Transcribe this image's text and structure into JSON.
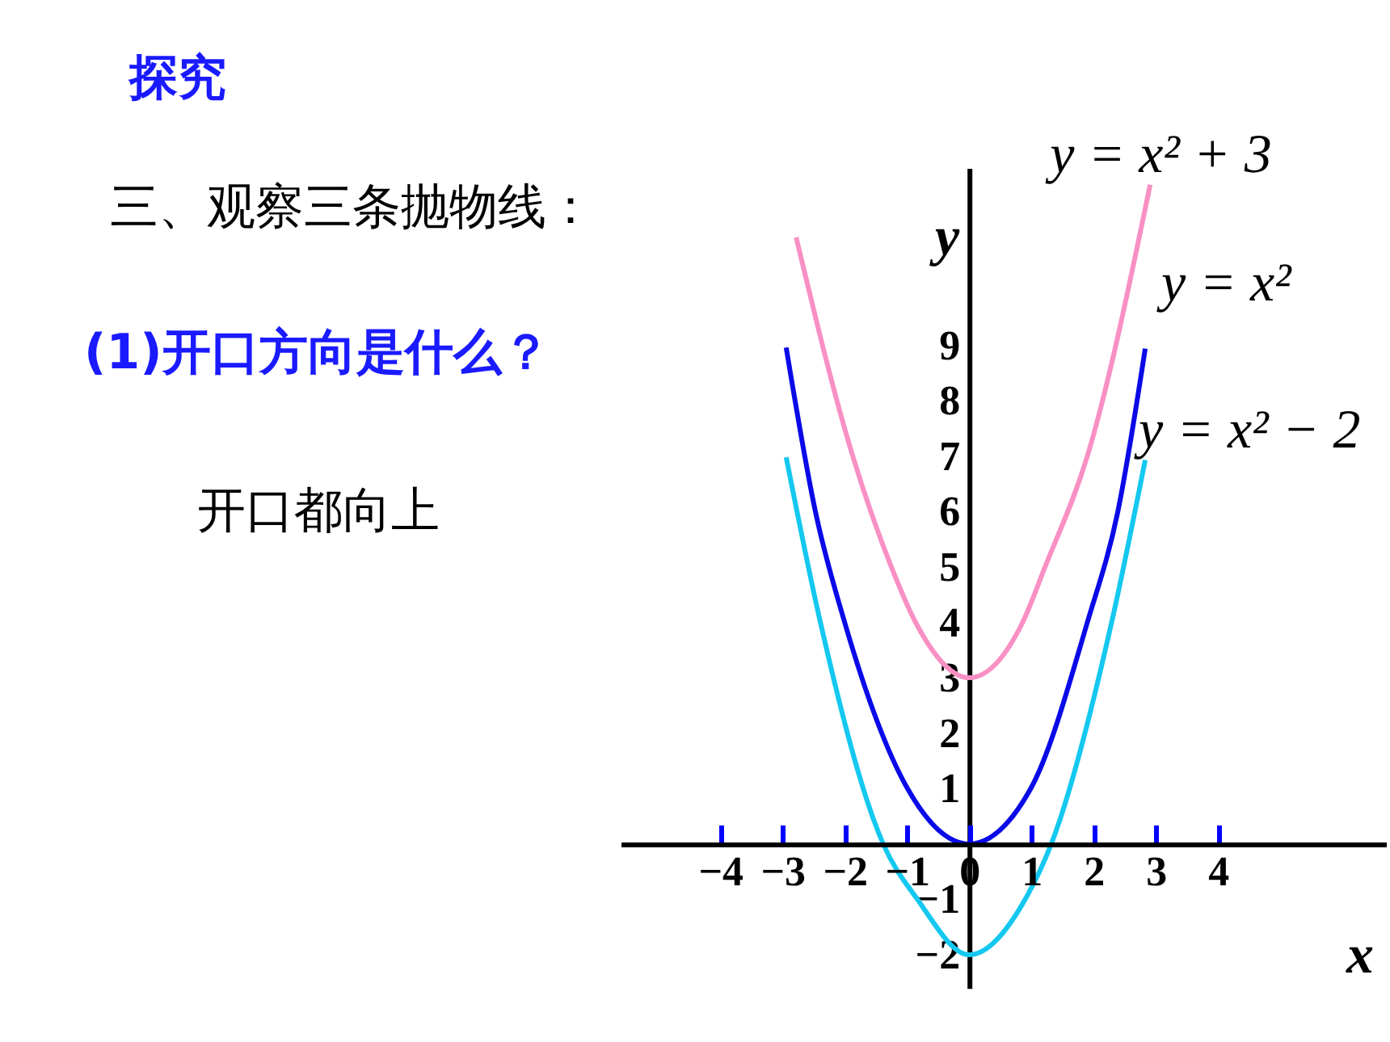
{
  "chart_data": {
    "type": "line",
    "title": "探究",
    "annotations": [
      "三、观察三条抛物线：",
      "(1)开口方向是什么？",
      "开口都向上"
    ],
    "xlabel": "x",
    "ylabel": "y",
    "xlim": [
      -5.6,
      6.7
    ],
    "ylim": [
      -2.6,
      12.2
    ],
    "xticks": [
      -4,
      -3,
      -2,
      -1,
      0,
      1,
      2,
      3,
      4
    ],
    "yticks": [
      -2,
      -1,
      1,
      2,
      3,
      4,
      5,
      6,
      7,
      8,
      9
    ],
    "grid": false,
    "legend": false,
    "series": [
      {
        "name": "y = x² + 3",
        "color": "#f990c4",
        "x": [
          -2.78,
          -1.87,
          -1.25,
          -0.86,
          0,
          0.86,
          1.22,
          1.9,
          2.91
        ],
        "values": [
          10.95,
          7,
          5,
          4,
          3,
          4,
          5,
          7,
          11.9
        ]
      },
      {
        "name": "y = x²",
        "color": "#0a0ae8",
        "x": [
          -2.94,
          -2.47,
          -2,
          -0.99,
          0,
          0.99,
          1.9,
          2.39,
          2.83
        ],
        "values": [
          8.96,
          6,
          4,
          1,
          0,
          1,
          4,
          6,
          8.94
        ]
      },
      {
        "name": "y = x² − 2",
        "color": "#14c8f0",
        "x": [
          -2.94,
          -2.39,
          -1.38,
          -0.83,
          0,
          0.9,
          1.32,
          2.29,
          2.83
        ],
        "values": [
          6.98,
          4,
          0,
          -1,
          -2,
          -1,
          0,
          4,
          6.93
        ]
      }
    ]
  }
}
